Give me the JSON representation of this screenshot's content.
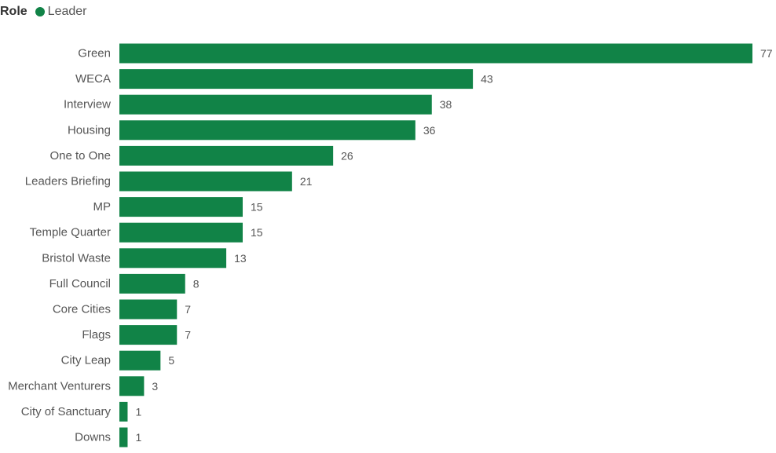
{
  "legend": {
    "title": "Role",
    "items": [
      {
        "label": "Leader",
        "color": "#118347"
      }
    ]
  },
  "chart_data": {
    "type": "bar",
    "orientation": "horizontal",
    "legend_position": "top-left",
    "grid": false,
    "categories": [
      "Green",
      "WECA",
      "Interview",
      "Housing",
      "One to One",
      "Leaders Briefing",
      "MP",
      "Temple Quarter",
      "Bristol Waste",
      "Full Council",
      "Core Cities",
      "Flags",
      "City Leap",
      "Merchant Venturers",
      "City of Sanctuary",
      "Downs"
    ],
    "series": [
      {
        "name": "Leader",
        "color": "#118347",
        "values": [
          77,
          43,
          38,
          36,
          26,
          21,
          15,
          15,
          13,
          8,
          7,
          7,
          5,
          3,
          1,
          1
        ]
      }
    ],
    "xlim": [
      0,
      77
    ],
    "show_data_labels": true
  }
}
